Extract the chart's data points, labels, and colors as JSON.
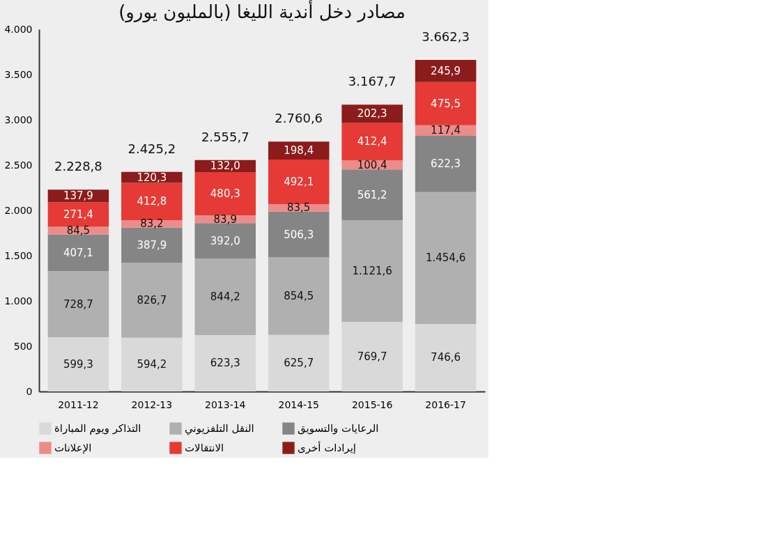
{
  "chart_data": {
    "type": "bar",
    "stacked": true,
    "title": "مصادر دخل أندية الليغا (بالمليون يورو)",
    "categories": [
      "2011-12",
      "2012-13",
      "2013-14",
      "2014-15",
      "2015-16",
      "2016-17"
    ],
    "series": [
      {
        "name": "التذاكر ويوم المباراة",
        "color": "#d9d9d9",
        "values": [
          599.3,
          594.2,
          623.3,
          625.7,
          769.7,
          746.6
        ],
        "value_labels": [
          "599,3",
          "594,2",
          "623,3",
          "625,7",
          "769,7",
          "746,6"
        ]
      },
      {
        "name": "النقل التلفزيوني",
        "color": "#b0b0b0",
        "values": [
          728.7,
          826.7,
          844.2,
          854.5,
          1121.6,
          1454.6
        ],
        "value_labels": [
          "728,7",
          "826,7",
          "844,2",
          "854,5",
          "1.121,6",
          "1.454,6"
        ]
      },
      {
        "name": "الرعايات والتسويق",
        "color": "#858585",
        "values": [
          407.1,
          387.9,
          392.0,
          506.3,
          561.2,
          622.3
        ],
        "value_labels": [
          "407,1",
          "387,9",
          "392,0",
          "506,3",
          "561,2",
          "622,3"
        ]
      },
      {
        "name": "الإعلانات",
        "color": "#ec8c8a",
        "values": [
          84.5,
          83.2,
          83.9,
          83.5,
          100.4,
          117.4
        ],
        "value_labels": [
          "84,5",
          "83,2",
          "83,9",
          "83,5",
          "100,4",
          "117,4"
        ]
      },
      {
        "name": "الانتقالات",
        "color": "#e53a35",
        "values": [
          271.4,
          412.8,
          480.3,
          492.1,
          412.4,
          475.5
        ],
        "value_labels": [
          "271,4",
          "412,8",
          "480,3",
          "492,1",
          "412,4",
          "475,5"
        ]
      },
      {
        "name": "إيرادات أخرى",
        "color": "#8b1c1c",
        "values": [
          137.9,
          120.3,
          132.0,
          198.4,
          202.3,
          245.9
        ],
        "value_labels": [
          "137,9",
          "120,3",
          "132,0",
          "198,4",
          "202,3",
          "245,9"
        ]
      }
    ],
    "totals": [
      "2.228,8",
      "2.425,2",
      "2.555,7",
      "2.760,6",
      "3.167,7",
      "3.662,3"
    ],
    "ylim": [
      0,
      4000
    ],
    "yticks": [
      0,
      500,
      {
        "value": 1000,
        "label": "1.000"
      },
      {
        "value": 1500,
        "label": "1.500"
      },
      {
        "value": 2000,
        "label": "2.000"
      },
      {
        "value": 2500,
        "label": "2.500"
      },
      {
        "value": 3000,
        "label": "3.000"
      },
      {
        "value": 3500,
        "label": "3.500"
      },
      {
        "value": 4000,
        "label": "4.000"
      }
    ],
    "grid": false,
    "legend": "bottom"
  }
}
